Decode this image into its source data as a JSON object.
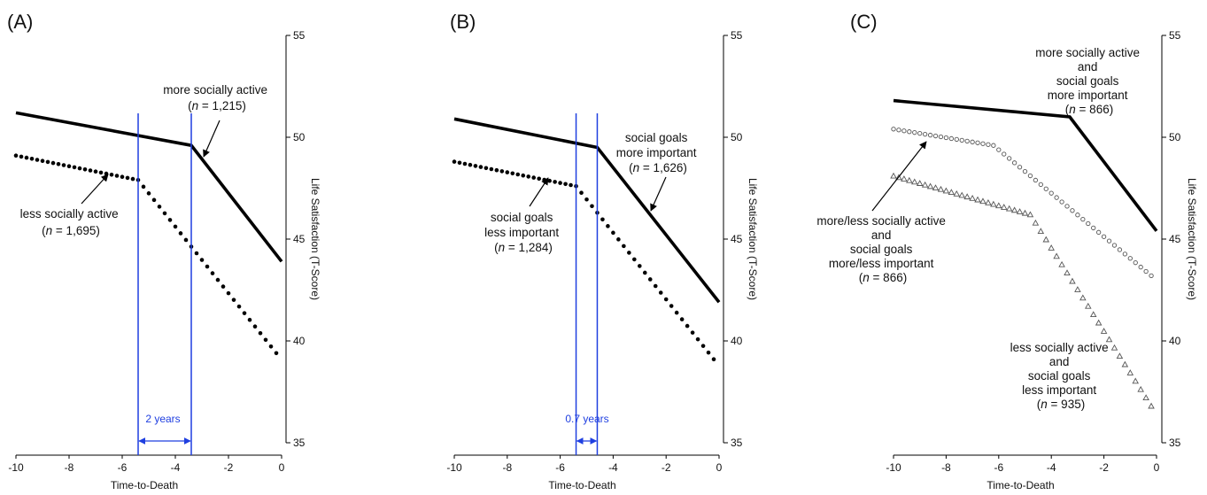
{
  "figure": {
    "colors": {
      "line": "#000000",
      "interval": "#1f3fe0",
      "hollow": "#555555"
    }
  },
  "chart_data": [
    {
      "type": "line",
      "panel_label": "(A)",
      "xlabel": "Time-to-Death",
      "ylabel": "Life Satisfaction (T-Score)",
      "xlim": [
        -10,
        0
      ],
      "ylim": [
        35,
        55
      ],
      "x_ticks": [
        -10,
        -8,
        -6,
        -4,
        -2,
        0
      ],
      "y_ticks": [
        35,
        40,
        45,
        50,
        55
      ],
      "series": [
        {
          "style": "solid",
          "x": [
            -10,
            -3.4,
            0
          ],
          "y": [
            51.2,
            49.6,
            43.9
          ]
        },
        {
          "style": "dotted",
          "x": [
            -10,
            -5.4,
            -0.2
          ],
          "y": [
            49.1,
            47.9,
            39.4
          ]
        }
      ],
      "vertical_lines": [
        -5.4,
        -3.4
      ],
      "interval_label": "2 years",
      "annotations": [
        {
          "lines": [
            "more socially active",
            "(n = 1,215)"
          ]
        },
        {
          "lines": [
            "less socially active",
            "(n = 1,695)"
          ]
        }
      ]
    },
    {
      "type": "line",
      "panel_label": "(B)",
      "xlabel": "Time-to-Death",
      "ylabel": "Life Satisfaction (T-Score)",
      "xlim": [
        -10,
        0
      ],
      "ylim": [
        35,
        55
      ],
      "x_ticks": [
        -10,
        -8,
        -6,
        -4,
        -2,
        0
      ],
      "y_ticks": [
        35,
        40,
        45,
        50,
        55
      ],
      "series": [
        {
          "style": "solid",
          "x": [
            -10,
            -4.6,
            0
          ],
          "y": [
            50.9,
            49.5,
            41.9
          ]
        },
        {
          "style": "dotted",
          "x": [
            -10,
            -5.4,
            -0.2
          ],
          "y": [
            48.8,
            47.6,
            39.1
          ]
        }
      ],
      "vertical_lines": [
        -5.4,
        -4.6
      ],
      "interval_label": "0.7 years",
      "annotations": [
        {
          "lines": [
            "social goals",
            "more important",
            "(n = 1,626)"
          ]
        },
        {
          "lines": [
            "social goals",
            "less important",
            "(n = 1,284)"
          ]
        }
      ]
    },
    {
      "type": "line",
      "panel_label": "(C)",
      "xlabel": "Time-to-Death",
      "ylabel": "Life Satisfaction (T-Score)",
      "xlim": [
        -10,
        0
      ],
      "ylim": [
        35,
        55
      ],
      "x_ticks": [
        -10,
        -8,
        -6,
        -4,
        -2,
        0
      ],
      "y_ticks": [
        35,
        40,
        45,
        50,
        55
      ],
      "series": [
        {
          "style": "solid",
          "x": [
            -10,
            -3.3,
            0
          ],
          "y": [
            51.8,
            51.0,
            45.4
          ]
        },
        {
          "style": "circles",
          "x": [
            -10,
            -6.2,
            -0.2
          ],
          "y": [
            50.4,
            49.6,
            43.2
          ]
        },
        {
          "style": "triangles",
          "x": [
            -10,
            -4.8,
            -0.2
          ],
          "y": [
            48.1,
            46.2,
            36.8
          ]
        }
      ],
      "annotations": [
        {
          "lines": [
            "more socially active",
            "and",
            "social goals",
            "more important",
            "(n = 866)"
          ]
        },
        {
          "lines": [
            "more/less socially active",
            "and",
            "social goals",
            "more/less important",
            "(n = 866)"
          ]
        },
        {
          "lines": [
            "less socially active",
            "and",
            "social goals",
            "less important",
            "(n = 935)"
          ]
        }
      ]
    }
  ]
}
